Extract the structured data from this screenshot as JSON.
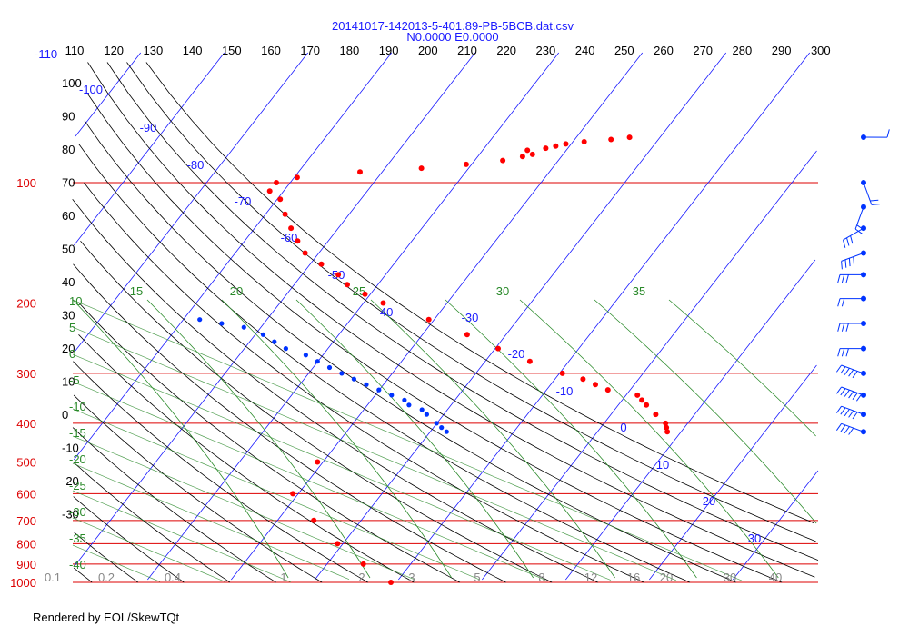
{
  "chart_data": {
    "type": "skewt",
    "title": "20141017-142013-5-401.89-PB-5BCB.dat.csv",
    "subtitle": "N0.0000 E0.0000",
    "top_temp_ticks": [
      "-110",
      "110",
      "120",
      "130",
      "140",
      "150",
      "160",
      "170",
      "180",
      "190",
      "200",
      "210",
      "220",
      "230",
      "240",
      "250",
      "260",
      "270",
      "280",
      "290",
      "300"
    ],
    "pressure_labels": [
      {
        "label": "100",
        "p": 100
      },
      {
        "label": "200",
        "p": 200
      },
      {
        "label": "300",
        "p": 300
      },
      {
        "label": "400",
        "p": 400
      },
      {
        "label": "500",
        "p": 500
      },
      {
        "label": "600",
        "p": 600
      },
      {
        "label": "700",
        "p": 700
      },
      {
        "label": "800",
        "p": 800
      },
      {
        "label": "900",
        "p": 900
      },
      {
        "label": "1000",
        "p": 1000
      }
    ],
    "left_scale_labels": [
      "100",
      "90",
      "80",
      "70",
      "60",
      "50",
      "40",
      "30",
      "20",
      "10",
      "0",
      "-10",
      "-20",
      "-30"
    ],
    "isotherm_labels": [
      "-100",
      "-90",
      "-80",
      "-70",
      "-60",
      "-50",
      "-40",
      "-30",
      "-20",
      "-10",
      "0",
      "10",
      "20",
      "30"
    ],
    "moist_adiabat_labels": [
      "15",
      "20",
      "25",
      "30",
      "35"
    ],
    "left_dry_labels": [
      "10",
      "5",
      "0",
      "-5",
      "-10",
      "-15",
      "-20",
      "-25",
      "-30",
      "-35",
      "-40"
    ],
    "mixing_ratio_labels": [
      "0.1",
      "0.2",
      "0.4",
      "1",
      "2",
      "3",
      "5",
      "8",
      "12",
      "16",
      "20",
      "30",
      "40"
    ],
    "temperature": [
      [
        1000,
        -20
      ],
      [
        900,
        -25
      ],
      [
        800,
        -30
      ],
      [
        700,
        -35
      ],
      [
        600,
        -40
      ],
      [
        500,
        -40
      ],
      [
        -3,
        -3
      ],
      [
        420,
        -1
      ],
      [
        410,
        -1.5
      ],
      [
        400,
        -2
      ],
      [
        380,
        -4
      ],
      [
        360,
        -6
      ],
      [
        350,
        -7
      ],
      [
        340,
        -8
      ],
      [
        330,
        -12
      ],
      [
        320,
        -14
      ],
      [
        310,
        -16
      ],
      [
        300,
        -19
      ],
      [
        280,
        -24
      ],
      [
        260,
        -29
      ],
      [
        240,
        -34
      ],
      [
        220,
        -40
      ],
      [
        200,
        -47
      ],
      [
        190,
        -50
      ],
      [
        180,
        -53
      ],
      [
        170,
        -55
      ],
      [
        160,
        -58
      ],
      [
        150,
        -61
      ],
      [
        140,
        -63
      ],
      [
        130,
        -65
      ],
      [
        120,
        -67
      ],
      [
        110,
        -69
      ],
      [
        105,
        -71
      ],
      [
        100,
        -71
      ],
      [
        97,
        -69
      ],
      [
        94,
        -62
      ],
      [
        92,
        -55
      ],
      [
        90,
        -50
      ],
      [
        88,
        -46
      ],
      [
        86,
        -44
      ],
      [
        85,
        -43
      ],
      [
        83,
        -44
      ],
      [
        82,
        -42
      ],
      [
        81,
        -41
      ],
      [
        80,
        -40
      ],
      [
        79,
        -38
      ],
      [
        78,
        -35
      ],
      [
        77,
        -33
      ]
    ],
    "dewpoint": [
      [
        420,
        -15
      ],
      [
        410,
        -16
      ],
      [
        400,
        -17
      ],
      [
        380,
        -19
      ],
      [
        370,
        -20
      ],
      [
        360,
        -22
      ],
      [
        350,
        -23
      ],
      [
        340,
        -25
      ],
      [
        330,
        -27
      ],
      [
        320,
        -29
      ],
      [
        310,
        -31
      ],
      [
        300,
        -33
      ],
      [
        290,
        -35
      ],
      [
        280,
        -37
      ],
      [
        270,
        -39
      ],
      [
        260,
        -42
      ],
      [
        250,
        -44
      ],
      [
        240,
        -46
      ],
      [
        230,
        -49
      ],
      [
        225,
        -52
      ],
      [
        220,
        -55
      ]
    ],
    "wind_barbs": [
      {
        "p": 77,
        "speed": 5,
        "dir": 90
      },
      {
        "p": 100,
        "speed": 15,
        "dir": 20
      },
      {
        "p": 115,
        "speed": 20,
        "dir": 340
      },
      {
        "p": 130,
        "speed": 30,
        "dir": 300
      },
      {
        "p": 150,
        "speed": 35,
        "dir": 290
      },
      {
        "p": 170,
        "speed": 30,
        "dir": 270
      },
      {
        "p": 195,
        "speed": 20,
        "dir": 270
      },
      {
        "p": 225,
        "speed": 25,
        "dir": 270
      },
      {
        "p": 260,
        "speed": 30,
        "dir": 270
      },
      {
        "p": 300,
        "speed": 50,
        "dir": 250
      },
      {
        "p": 340,
        "speed": 55,
        "dir": 250
      },
      {
        "p": 380,
        "speed": 45,
        "dir": 250
      },
      {
        "p": 420,
        "speed": 40,
        "dir": 250
      }
    ],
    "grid": true,
    "footer": "Rendered by EOL/SkewTQt",
    "colors": {
      "title": "#1a1aff",
      "isobar": "#dd0000",
      "isotherm": "#1a1aff",
      "dry_adiabat": "#000000",
      "moist_adiabat": "#2a8a2a",
      "temperature": "#ff0000",
      "dewpoint": "#0033ff",
      "barbs": "#0033ff",
      "mixing_ratio_text": "#888888"
    }
  }
}
